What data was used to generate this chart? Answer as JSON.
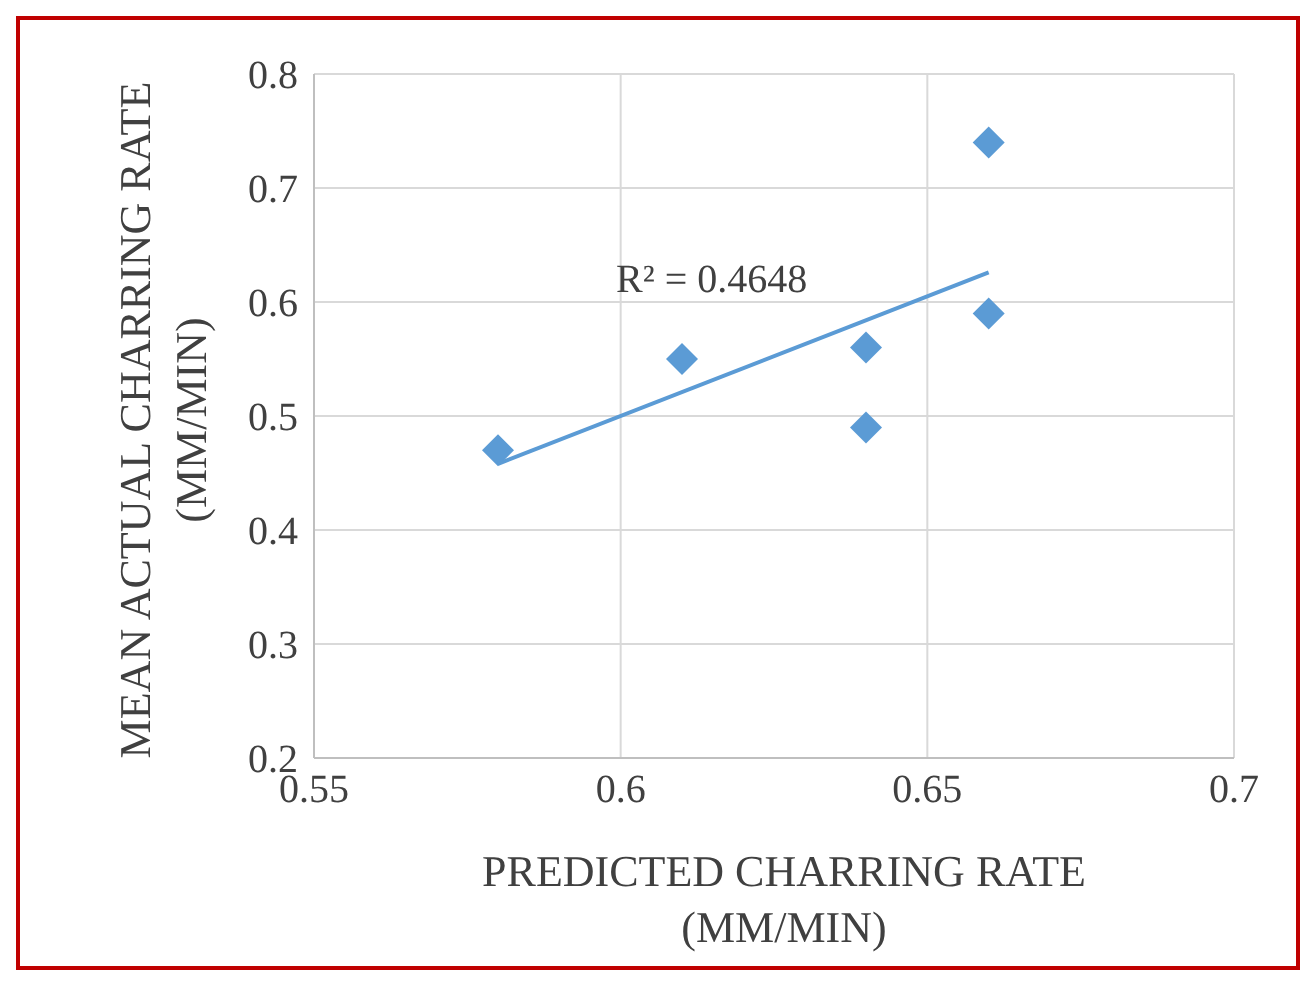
{
  "chart_data": {
    "type": "scatter",
    "xlabel": "PREDICTED CHARRING RATE (MM/MIN)",
    "ylabel": "MEAN ACTUAL CHARRING RATE (MM/MIN)",
    "series": [
      {
        "color": "#5b9bd5",
        "x": [
          0.58,
          0.61,
          0.64,
          0.64,
          0.66,
          0.66
        ],
        "values": [
          0.47,
          0.55,
          0.56,
          0.49,
          0.74,
          0.59
        ]
      },
      {
        "type": "line",
        "color": "#5b9bd5",
        "marker": "none",
        "x": [
          0.58,
          0.66
        ],
        "values": [
          0.458,
          0.626
        ]
      }
    ],
    "annotations": [
      "R² = 0.4648"
    ],
    "xlim": [
      0.55,
      0.7
    ],
    "xticks": [
      0.55,
      0.6,
      0.65,
      0.7
    ],
    "ylim": [
      0.2,
      0.8
    ],
    "yticks": [
      0.2,
      0.3,
      0.4,
      0.5,
      0.6,
      0.7,
      0.8
    ],
    "grid": true,
    "marker": "diamond"
  }
}
